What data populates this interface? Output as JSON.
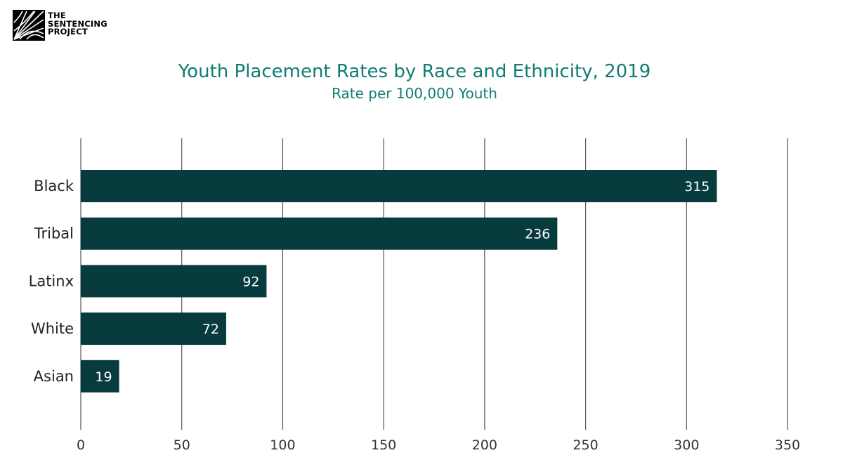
{
  "logo": {
    "line1": "THE",
    "line2": "SENTENCING",
    "line3": "PROJECT"
  },
  "chart_data": {
    "type": "bar",
    "orientation": "horizontal",
    "title": "Youth Placement Rates by Race and Ethnicity, 2019",
    "subtitle": "Rate per 100,000 Youth",
    "categories": [
      "Black",
      "Tribal",
      "Latinx",
      "White",
      "Asian"
    ],
    "values": [
      315,
      236,
      92,
      72,
      19
    ],
    "data_labels": [
      "315",
      "236",
      "92",
      "72",
      "19"
    ],
    "xlim": [
      0,
      350
    ],
    "xticks": [
      0,
      50,
      100,
      150,
      200,
      250,
      300,
      350
    ],
    "grid": true,
    "bar_color": "#073b3e",
    "grid_color": "#555555",
    "title_color": "#0f7d74"
  }
}
